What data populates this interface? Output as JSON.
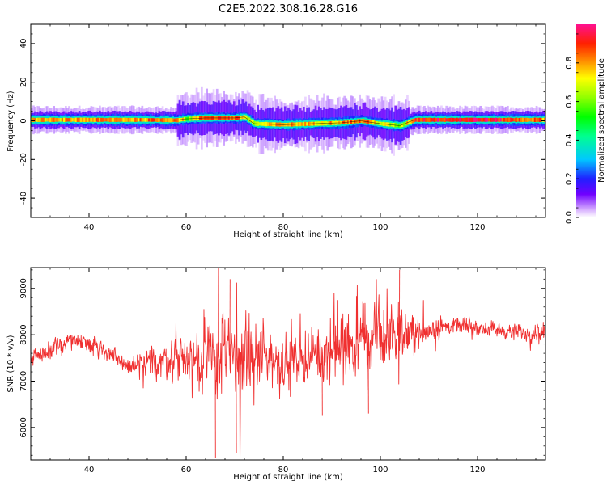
{
  "title": "C2E5.2022.308.16.28.G16",
  "colors": {
    "snr_line": "#f03030",
    "axis": "#000000",
    "background": "#ffffff"
  },
  "colorbar": {
    "label": "Normalized spectral amplitude",
    "ticks": [
      "0.0",
      "0.2",
      "0.4",
      "0.6",
      "0.8"
    ],
    "tick_values": [
      0.0,
      0.2,
      0.4,
      0.6,
      0.8
    ],
    "range": [
      0,
      1
    ],
    "colormap": "gist_ncar-like (white-purple-blue-cyan-green-yellow-red-pink)"
  },
  "chart_data": [
    {
      "type": "heatmap",
      "title": "C2E5.2022.308.16.28.G16",
      "xlabel": "Height of straight line (km)",
      "ylabel": "Frequency (Hz)",
      "xlim": [
        28,
        134
      ],
      "ylim": [
        -50,
        50
      ],
      "x_ticks": [
        "40",
        "60",
        "80",
        "100",
        "120"
      ],
      "x_tick_values": [
        40,
        60,
        80,
        100,
        120
      ],
      "y_ticks": [
        "-40",
        "-20",
        "0",
        "20",
        "40"
      ],
      "y_tick_values": [
        -40,
        -20,
        0,
        20,
        40
      ],
      "ridge": [
        {
          "x": 28,
          "freq": 0.5,
          "amp": 0.75
        },
        {
          "x": 40,
          "freq": 0.5,
          "amp": 0.8
        },
        {
          "x": 50,
          "freq": 0.5,
          "amp": 0.8
        },
        {
          "x": 58,
          "freq": 0.3,
          "amp": 0.85
        },
        {
          "x": 60,
          "freq": 1.0,
          "amp": 0.6
        },
        {
          "x": 64,
          "freq": 1.5,
          "amp": 0.9
        },
        {
          "x": 70,
          "freq": 1.5,
          "amp": 0.85
        },
        {
          "x": 72,
          "freq": 2.0,
          "amp": 0.7
        },
        {
          "x": 74,
          "freq": -1.5,
          "amp": 0.65
        },
        {
          "x": 80,
          "freq": -2.0,
          "amp": 0.8
        },
        {
          "x": 86,
          "freq": -1.5,
          "amp": 0.75
        },
        {
          "x": 92,
          "freq": -1.0,
          "amp": 0.8
        },
        {
          "x": 96,
          "freq": 0.0,
          "amp": 0.85
        },
        {
          "x": 100,
          "freq": -1.5,
          "amp": 0.7
        },
        {
          "x": 104,
          "freq": -2.5,
          "amp": 0.6
        },
        {
          "x": 107,
          "freq": 0.5,
          "amp": 0.9
        },
        {
          "x": 120,
          "freq": 0.5,
          "amp": 0.95
        },
        {
          "x": 134,
          "freq": 0.5,
          "amp": 0.8
        }
      ],
      "grid": false
    },
    {
      "type": "line",
      "xlabel": "Height of straight line (km)",
      "ylabel": "SNR (10 * v/v)",
      "xlim": [
        28,
        134
      ],
      "ylim": [
        5300,
        9450
      ],
      "x_ticks": [
        "40",
        "60",
        "80",
        "100",
        "120"
      ],
      "x_tick_values": [
        40,
        60,
        80,
        100,
        120
      ],
      "y_ticks": [
        "6000",
        "7000",
        "8000",
        "9000"
      ],
      "y_tick_values": [
        6000,
        7000,
        8000,
        9000
      ],
      "series": [
        {
          "color": "#f03030",
          "envelope": [
            {
              "x": 28,
              "mean": 7500,
              "spread": 150
            },
            {
              "x": 32,
              "mean": 7650,
              "spread": 180
            },
            {
              "x": 36,
              "mean": 7900,
              "spread": 160
            },
            {
              "x": 40,
              "mean": 7850,
              "spread": 170
            },
            {
              "x": 44,
              "mean": 7600,
              "spread": 200
            },
            {
              "x": 48,
              "mean": 7300,
              "spread": 180
            },
            {
              "x": 52,
              "mean": 7350,
              "spread": 260
            },
            {
              "x": 56,
              "mean": 7500,
              "spread": 380
            },
            {
              "x": 60,
              "mean": 7450,
              "spread": 450
            },
            {
              "x": 64,
              "mean": 7500,
              "spread": 650
            },
            {
              "x": 68,
              "mean": 7550,
              "spread": 900
            },
            {
              "x": 72,
              "mean": 7450,
              "spread": 850
            },
            {
              "x": 76,
              "mean": 7550,
              "spread": 650
            },
            {
              "x": 80,
              "mean": 7400,
              "spread": 500
            },
            {
              "x": 84,
              "mean": 7500,
              "spread": 450
            },
            {
              "x": 88,
              "mean": 7600,
              "spread": 500
            },
            {
              "x": 92,
              "mean": 7700,
              "spread": 700
            },
            {
              "x": 96,
              "mean": 7800,
              "spread": 650
            },
            {
              "x": 100,
              "mean": 7900,
              "spread": 600
            },
            {
              "x": 104,
              "mean": 8000,
              "spread": 550
            },
            {
              "x": 108,
              "mean": 8050,
              "spread": 300
            },
            {
              "x": 112,
              "mean": 8150,
              "spread": 200
            },
            {
              "x": 116,
              "mean": 8200,
              "spread": 150
            },
            {
              "x": 120,
              "mean": 8150,
              "spread": 150
            },
            {
              "x": 124,
              "mean": 8100,
              "spread": 150
            },
            {
              "x": 128,
              "mean": 8050,
              "spread": 150
            },
            {
              "x": 132,
              "mean": 8050,
              "spread": 170
            },
            {
              "x": 134,
              "mean": 8100,
              "spread": 150
            }
          ],
          "extremes": [
            {
              "x": 66.0,
              "y": 5350
            },
            {
              "x": 66.6,
              "y": 9450
            },
            {
              "x": 70.3,
              "y": 5450
            },
            {
              "x": 69.0,
              "y": 9200
            },
            {
              "x": 103.9,
              "y": 9400
            },
            {
              "x": 97.5,
              "y": 6300
            },
            {
              "x": 88.0,
              "y": 6250
            }
          ]
        }
      ],
      "grid": false
    }
  ]
}
